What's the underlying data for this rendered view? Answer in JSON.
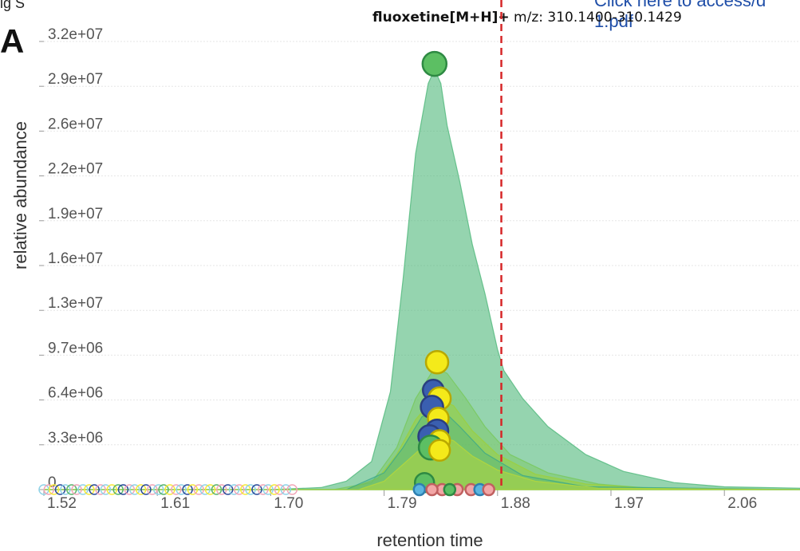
{
  "header": {
    "corner_text": "ig S",
    "panel_letter": "A",
    "link_text_line1": "Click here to access/d",
    "link_text_line2": "1.pdf",
    "title_compound": "fluoxetine[M+H]+",
    "title_mz": "m/z: 310.1400-310.1429"
  },
  "chart_data": {
    "type": "area",
    "xlabel": "retention time",
    "ylabel": "relative abundance",
    "x_ticks": [
      "1.52",
      "1.61",
      "1.70",
      "1.79",
      "1.88",
      "1.97",
      "2.06"
    ],
    "y_ticks": [
      "0",
      "3.3e+06",
      "6.4e+06",
      "9.7e+06",
      "1.3e+07",
      "1.6e+07",
      "1.9e+07",
      "2.2e+07",
      "2.6e+07",
      "2.9e+07",
      "3.2e+07"
    ],
    "xlim": [
      1.52,
      2.12
    ],
    "ylim": [
      0,
      32000000
    ],
    "vline_x": 1.883,
    "vline_color": "#d62728",
    "series": [
      {
        "color": "#4fb87a",
        "opacity": 0.6,
        "x": [
          1.52,
          1.7,
          1.74,
          1.76,
          1.78,
          1.795,
          1.805,
          1.815,
          1.825,
          1.83,
          1.835,
          1.84,
          1.85,
          1.86,
          1.87,
          1.88,
          1.885,
          1.9,
          1.92,
          1.95,
          1.98,
          2.02,
          2.06,
          2.12
        ],
        "y": [
          0,
          0,
          150000,
          600000,
          2000000,
          7000000,
          15000000,
          24000000,
          29000000,
          30000000,
          29000000,
          26000000,
          22000000,
          17500000,
          14000000,
          10000000,
          8500000,
          6500000,
          4500000,
          2500000,
          1300000,
          500000,
          200000,
          100000
        ]
      },
      {
        "color": "#78c85a",
        "opacity": 0.45,
        "x": [
          1.52,
          1.75,
          1.78,
          1.8,
          1.815,
          1.83,
          1.84,
          1.855,
          1.87,
          1.89,
          1.92,
          1.96,
          2.0,
          2.12
        ],
        "y": [
          0,
          0,
          500000,
          3000000,
          6500000,
          8700000,
          8300000,
          6500000,
          4500000,
          2500000,
          1200000,
          400000,
          100000,
          0
        ]
      },
      {
        "color": "#9ccf3a",
        "opacity": 0.5,
        "x": [
          1.52,
          1.76,
          1.785,
          1.8,
          1.815,
          1.83,
          1.845,
          1.86,
          1.88,
          1.91,
          1.95,
          2.0,
          2.12
        ],
        "y": [
          0,
          0,
          800000,
          2500000,
          5000000,
          6600000,
          6000000,
          4200000,
          2500000,
          1100000,
          400000,
          100000,
          0
        ]
      },
      {
        "color": "#3aa88a",
        "opacity": 0.35,
        "x": [
          1.52,
          1.76,
          1.79,
          1.805,
          1.82,
          1.835,
          1.85,
          1.87,
          1.9,
          1.95,
          2.12
        ],
        "y": [
          0,
          0,
          1200000,
          3000000,
          5200000,
          5800000,
          4500000,
          2600000,
          1000000,
          200000,
          0
        ]
      },
      {
        "color": "#b8d83a",
        "opacity": 0.5,
        "x": [
          1.52,
          1.77,
          1.79,
          1.81,
          1.83,
          1.845,
          1.86,
          1.88,
          1.91,
          1.96,
          2.12
        ],
        "y": [
          0,
          0,
          600000,
          2200000,
          3800000,
          3500000,
          2400000,
          1400000,
          600000,
          100000,
          0
        ]
      }
    ],
    "apex_points": [
      {
        "x": 1.83,
        "y": 30400000,
        "color": "#5cbf63",
        "stroke": "#2e8a43",
        "r": 15
      },
      {
        "x": 1.832,
        "y": 9100000,
        "color": "#f4ea1a",
        "stroke": "#b8a800",
        "r": 14
      },
      {
        "x": 1.829,
        "y": 7100000,
        "color": "#3a5fb0",
        "stroke": "#2a3f80",
        "r": 13
      },
      {
        "x": 1.834,
        "y": 6500000,
        "color": "#f4ea1a",
        "stroke": "#b8a800",
        "r": 14
      },
      {
        "x": 1.828,
        "y": 5900000,
        "color": "#3a5fb0",
        "stroke": "#2a3f80",
        "r": 14
      },
      {
        "x": 1.833,
        "y": 5100000,
        "color": "#f4ea1a",
        "stroke": "#b8a800",
        "r": 13
      },
      {
        "x": 1.832,
        "y": 4200000,
        "color": "#3a5fb0",
        "stroke": "#2a3f80",
        "r": 14
      },
      {
        "x": 1.826,
        "y": 3800000,
        "color": "#3a5fb0",
        "stroke": "#2a3f80",
        "r": 14
      },
      {
        "x": 1.834,
        "y": 3500000,
        "color": "#f4ea1a",
        "stroke": "#b8a800",
        "r": 13
      },
      {
        "x": 1.827,
        "y": 3000000,
        "color": "#5cbf63",
        "stroke": "#2e8a43",
        "r": 15
      },
      {
        "x": 1.834,
        "y": 2800000,
        "color": "#f4ea1a",
        "stroke": "#b8a800",
        "r": 13
      },
      {
        "x": 1.822,
        "y": 500000,
        "color": "#5cbf63",
        "stroke": "#2e8a43",
        "r": 12
      },
      {
        "x": 1.818,
        "y": 0,
        "color": "#5bb5e0",
        "stroke": "#2e7fb0",
        "r": 7
      },
      {
        "x": 1.836,
        "y": 0,
        "color": "#f2a6a6",
        "stroke": "#c06060",
        "r": 7
      },
      {
        "x": 1.848,
        "y": 0,
        "color": "#f2a6a6",
        "stroke": "#c06060",
        "r": 7
      },
      {
        "x": 1.859,
        "y": 0,
        "color": "#f2a6a6",
        "stroke": "#c06060",
        "r": 7
      },
      {
        "x": 1.866,
        "y": 0,
        "color": "#5bb5e0",
        "stroke": "#2e7fb0",
        "r": 7
      },
      {
        "x": 1.873,
        "y": 0,
        "color": "#f2a6a6",
        "stroke": "#c06060",
        "r": 7
      },
      {
        "x": 1.828,
        "y": 0,
        "color": "#f2a6a6",
        "stroke": "#c06060",
        "r": 7
      },
      {
        "x": 1.842,
        "y": 0,
        "color": "#5cbf63",
        "stroke": "#2e8a43",
        "r": 7
      }
    ],
    "baseline_points": {
      "x": [
        1.52,
        1.524,
        1.528,
        1.533,
        1.537,
        1.542,
        1.546,
        1.551,
        1.556,
        1.56,
        1.565,
        1.569,
        1.574,
        1.579,
        1.583,
        1.588,
        1.592,
        1.597,
        1.601,
        1.606,
        1.611,
        1.615,
        1.62,
        1.625,
        1.629,
        1.634,
        1.638,
        1.643,
        1.648,
        1.652,
        1.657,
        1.661,
        1.666,
        1.671,
        1.675,
        1.68,
        1.684,
        1.689,
        1.694,
        1.698,
        1.703,
        1.707,
        1.712,
        1.717
      ],
      "colors": [
        "#8fd3e8",
        "#f2a6b8",
        "#f7e93a",
        "#2a4a9a",
        "#8fd3e8",
        "#5bb56b",
        "#f2a6b8",
        "#8fd3e8",
        "#f7e93a",
        "#2a4a9a",
        "#f2a6b8",
        "#8fd3e8",
        "#f7e93a",
        "#5bb56b",
        "#2a4a9a",
        "#f2a6b8",
        "#8fd3e8",
        "#f7e93a",
        "#2a4a9a",
        "#f2a6b8",
        "#8fd3e8",
        "#5bb56b",
        "#f7e93a",
        "#f2a6b8",
        "#8fd3e8",
        "#2a4a9a",
        "#f7e93a",
        "#f2a6b8",
        "#8fd3e8",
        "#f7e93a",
        "#5bb56b",
        "#f2a6b8",
        "#2a4a9a",
        "#8fd3e8",
        "#f2a6b8",
        "#f7e93a",
        "#8fd3e8",
        "#2a4a9a",
        "#f2a6b8",
        "#8fd3e8",
        "#f7e93a",
        "#f2a6b8",
        "#8fd3e8",
        "#f2a6b8"
      ]
    }
  }
}
